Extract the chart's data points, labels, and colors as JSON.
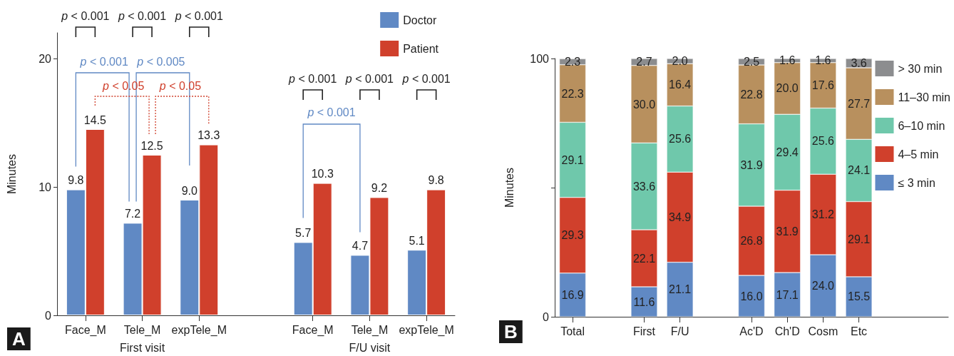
{
  "chart_data": [
    {
      "type": "bar",
      "title": "A",
      "ylabel": "Minutes",
      "categories": [
        "Face_M",
        "Tele_M",
        "expTele_M",
        null,
        "Face_M",
        "Tele_M",
        "expTele_M"
      ],
      "series": [
        {
          "name": "Doctor",
          "color": "#6089c4",
          "values": [
            9.8,
            7.2,
            9.0,
            null,
            5.7,
            4.7,
            5.1
          ],
          "value_labels": [
            "9.8",
            "7.2",
            "9.0",
            null,
            "5.7",
            "4.7",
            "5.1"
          ]
        },
        {
          "name": "Patient",
          "color": "#d0402c",
          "values": [
            14.5,
            12.5,
            13.3,
            null,
            10.3,
            9.2,
            9.8
          ],
          "value_labels": [
            "14.5",
            "12.5",
            "13.3",
            null,
            "10.3",
            "9.2",
            "9.8"
          ]
        }
      ],
      "ylim": [
        0,
        22
      ],
      "yticks": [
        0,
        10,
        20
      ],
      "grid": false,
      "legend": "top right",
      "annotations": [
        "p < 0.001",
        "p < 0.001",
        "p < 0.001",
        "p < 0.001",
        "p < 0.005",
        "p < 0.05",
        "p < 0.05",
        "p < 0.001",
        "p < 0.001",
        "p < 0.001",
        "p < 0.001",
        "First visit",
        "F/U visit"
      ]
    },
    {
      "type": "bar",
      "title": "B",
      "ylabel": "Minutes",
      "stacked": true,
      "categories": [
        "Total",
        null,
        "First",
        "F/U",
        null,
        "Ac'D",
        "Ch'D",
        "Cosm",
        "Etc",
        null,
        null
      ],
      "series": [
        {
          "name": "≤ 3 min",
          "color": "#6089c4",
          "values": [
            16.9,
            null,
            11.6,
            21.1,
            null,
            16.0,
            17.1,
            24.0,
            15.5,
            null,
            null
          ],
          "value_labels": [
            "16.9",
            null,
            "11.6",
            "21.1",
            null,
            "16.0",
            "17.1",
            "24.0",
            "15.5",
            null,
            null
          ]
        },
        {
          "name": "4–5 min",
          "color": "#d0402c",
          "values": [
            29.3,
            null,
            22.1,
            34.9,
            null,
            26.8,
            31.9,
            31.2,
            29.1,
            null,
            null
          ],
          "value_labels": [
            "29.3",
            null,
            "22.1",
            "34.9",
            null,
            "26.8",
            "31.9",
            "31.2",
            "29.1",
            null,
            null
          ]
        },
        {
          "name": "6–10 min",
          "color": "#6fc8ab",
          "values": [
            29.1,
            null,
            33.6,
            25.6,
            null,
            31.9,
            29.4,
            25.6,
            24.1,
            null,
            null
          ],
          "value_labels": [
            "29.1",
            null,
            "33.6",
            "25.6",
            null,
            "31.9",
            "29.4",
            "25.6",
            "24.1",
            null,
            null
          ]
        },
        {
          "name": "11–30 min",
          "color": "#b8905e",
          "values": [
            22.3,
            null,
            30.0,
            16.4,
            null,
            22.8,
            20.0,
            17.6,
            27.7,
            null,
            null
          ],
          "value_labels": [
            "22.3",
            null,
            "30.0",
            "16.4",
            null,
            "22.8",
            "20.0",
            "17.6",
            "27.7",
            null,
            null
          ]
        },
        {
          "name": "> 30 min",
          "color": "#8c8d8f",
          "values": [
            2.3,
            null,
            2.7,
            2.0,
            null,
            2.5,
            1.6,
            1.6,
            3.6,
            null,
            null
          ],
          "value_labels": [
            "2.3",
            null,
            "2.7",
            "2.0",
            null,
            "2.5",
            "1.6",
            "1.6",
            "3.6",
            null,
            null
          ]
        }
      ],
      "ylim": [
        0,
        100
      ],
      "yticks": [
        0,
        {
          "value": 50,
          "label": null
        },
        100
      ],
      "grid": false,
      "legend": "right"
    }
  ]
}
